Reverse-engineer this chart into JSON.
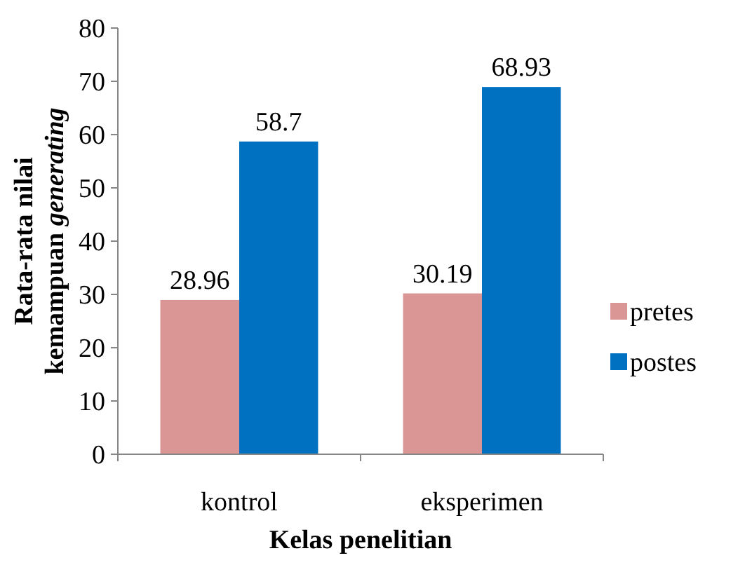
{
  "chart_data": {
    "type": "bar",
    "xlabel": "Kelas penelitian",
    "ylabel": "Rata-rata nilai kemampuan generating",
    "categories": [
      "kontrol",
      "eksperimen"
    ],
    "series": [
      {
        "name": "pretes",
        "color": "#d99694",
        "values": [
          28.96,
          30.19
        ]
      },
      {
        "name": "postes",
        "color": "#0070c0",
        "values": [
          58.7,
          68.93
        ]
      }
    ],
    "ylim": [
      0,
      80
    ],
    "yticks": [
      0,
      10,
      20,
      30,
      40,
      50,
      60,
      70,
      80
    ],
    "data_labels": true,
    "legend": "right",
    "grid": false
  }
}
